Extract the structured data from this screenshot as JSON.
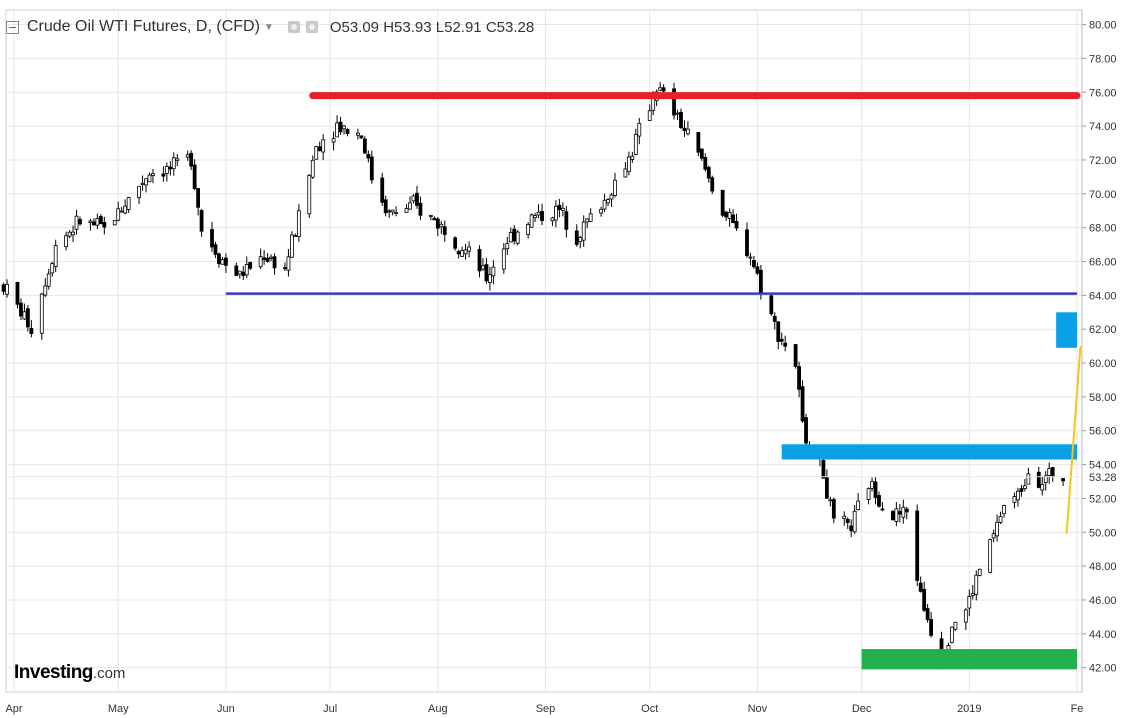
{
  "header": {
    "title": "Crude Oil WTI Futures, D, (CFD)",
    "ohlc": {
      "open_label": "O",
      "open": "53.09",
      "high_label": "H",
      "high": "53.93",
      "low_label": "L",
      "low": "52.91",
      "close_label": "C",
      "close": "53.28"
    }
  },
  "logo": {
    "brand": "Investing",
    "suffix": ".com"
  },
  "colors": {
    "resistance": "#e8202a",
    "support": "#3a3ab8",
    "zone_blue": "#0aa0e6",
    "zone_green": "#22b14c",
    "trend": "#f5c518",
    "candle": "#000000",
    "grid": "#e6e6e6"
  },
  "chart_data": {
    "type": "candlestick",
    "y_axis": {
      "min": 41,
      "max": 80.5,
      "ticks": [
        42,
        44,
        46,
        48,
        50,
        52,
        54,
        56,
        58,
        60,
        62,
        64,
        66,
        68,
        70,
        72,
        74,
        76,
        78,
        80
      ],
      "tick_labels": [
        "42.00",
        "44.00",
        "46.00",
        "48.00",
        "50.00",
        "52.00",
        "54.00",
        "56.00",
        "58.00",
        "60.00",
        "62.00",
        "64.00",
        "66.00",
        "68.00",
        "70.00",
        "72.00",
        "74.00",
        "76.00",
        "78.00",
        "80.00"
      ],
      "current_price": 53.28,
      "current_label": "53.28"
    },
    "x_axis": {
      "start": "2018-04-01",
      "end": "2019-02-01",
      "ticks": [
        {
          "date": "2018-04-01",
          "label": "Apr"
        },
        {
          "date": "2018-05-01",
          "label": "May"
        },
        {
          "date": "2018-06-01",
          "label": "Jun"
        },
        {
          "date": "2018-07-01",
          "label": "Jul"
        },
        {
          "date": "2018-08-01",
          "label": "Aug"
        },
        {
          "date": "2018-09-01",
          "label": "Sep"
        },
        {
          "date": "2018-10-01",
          "label": "Oct"
        },
        {
          "date": "2018-11-01",
          "label": "Nov"
        },
        {
          "date": "2018-12-01",
          "label": "Dec"
        },
        {
          "date": "2019-01-01",
          "label": "2019"
        },
        {
          "date": "2019-02-01",
          "label": "Fe"
        }
      ]
    },
    "price_path": [
      [
        "2018-03-29",
        64.6
      ],
      [
        "2018-04-06",
        62.1
      ],
      [
        "2018-04-13",
        67.0
      ],
      [
        "2018-04-20",
        68.4
      ],
      [
        "2018-04-27",
        67.9
      ],
      [
        "2018-05-04",
        69.7
      ],
      [
        "2018-05-10",
        71.3
      ],
      [
        "2018-05-17",
        71.5
      ],
      [
        "2018-05-22",
        72.2
      ],
      [
        "2018-05-25",
        67.9
      ],
      [
        "2018-06-01",
        65.8
      ],
      [
        "2018-06-05",
        65.2
      ],
      [
        "2018-06-12",
        66.4
      ],
      [
        "2018-06-18",
        65.6
      ],
      [
        "2018-06-22",
        68.6
      ],
      [
        "2018-06-27",
        72.8
      ],
      [
        "2018-07-03",
        74.1
      ],
      [
        "2018-07-10",
        73.5
      ],
      [
        "2018-07-13",
        71.0
      ],
      [
        "2018-07-18",
        68.8
      ],
      [
        "2018-07-25",
        69.3
      ],
      [
        "2018-08-01",
        68.3
      ],
      [
        "2018-08-08",
        66.9
      ],
      [
        "2018-08-15",
        65.0
      ],
      [
        "2018-08-21",
        67.3
      ],
      [
        "2018-08-28",
        68.6
      ],
      [
        "2018-09-05",
        69.0
      ],
      [
        "2018-09-10",
        67.6
      ],
      [
        "2018-09-18",
        69.6
      ],
      [
        "2018-09-25",
        72.1
      ],
      [
        "2018-10-03",
        76.3
      ],
      [
        "2018-10-09",
        74.5
      ],
      [
        "2018-10-16",
        71.9
      ],
      [
        "2018-10-22",
        69.0
      ],
      [
        "2018-10-30",
        66.4
      ],
      [
        "2018-11-06",
        62.2
      ],
      [
        "2018-11-12",
        59.9
      ],
      [
        "2018-11-14",
        56.2
      ],
      [
        "2018-11-20",
        53.4
      ],
      [
        "2018-11-23",
        50.4
      ],
      [
        "2018-11-28",
        50.3
      ],
      [
        "2018-12-03",
        52.9
      ],
      [
        "2018-12-10",
        51.0
      ],
      [
        "2018-12-14",
        51.2
      ],
      [
        "2018-12-18",
        46.2
      ],
      [
        "2018-12-24",
        42.5
      ],
      [
        "2018-12-27",
        44.6
      ],
      [
        "2018-12-31",
        45.4
      ],
      [
        "2019-01-04",
        47.8
      ],
      [
        "2019-01-08",
        49.8
      ],
      [
        "2019-01-11",
        51.6
      ],
      [
        "2019-01-15",
        52.1
      ],
      [
        "2019-01-18",
        53.8
      ],
      [
        "2019-01-22",
        53.0
      ],
      [
        "2019-01-25",
        53.5
      ],
      [
        "2019-01-28",
        53.28
      ]
    ],
    "annotations": {
      "resistance_line": {
        "from": "2018-06-26",
        "to": "2019-02-01",
        "price": 75.8
      },
      "support_line": {
        "from": "2018-06-01",
        "to": "2019-02-01",
        "price": 64.1
      },
      "blue_zone_upper": {
        "from": "2019-01-26",
        "to": "2019-02-01",
        "top": 63.0,
        "bottom": 60.9
      },
      "blue_zone_mid": {
        "from": "2018-11-08",
        "to": "2019-02-01",
        "top": 55.2,
        "bottom": 54.3
      },
      "green_zone": {
        "from": "2018-12-01",
        "to": "2019-02-01",
        "top": 43.1,
        "bottom": 41.9
      },
      "trend_line": {
        "from": [
          "2019-01-29",
          49.9
        ],
        "to": [
          "2019-02-02",
          61.0
        ]
      }
    }
  }
}
